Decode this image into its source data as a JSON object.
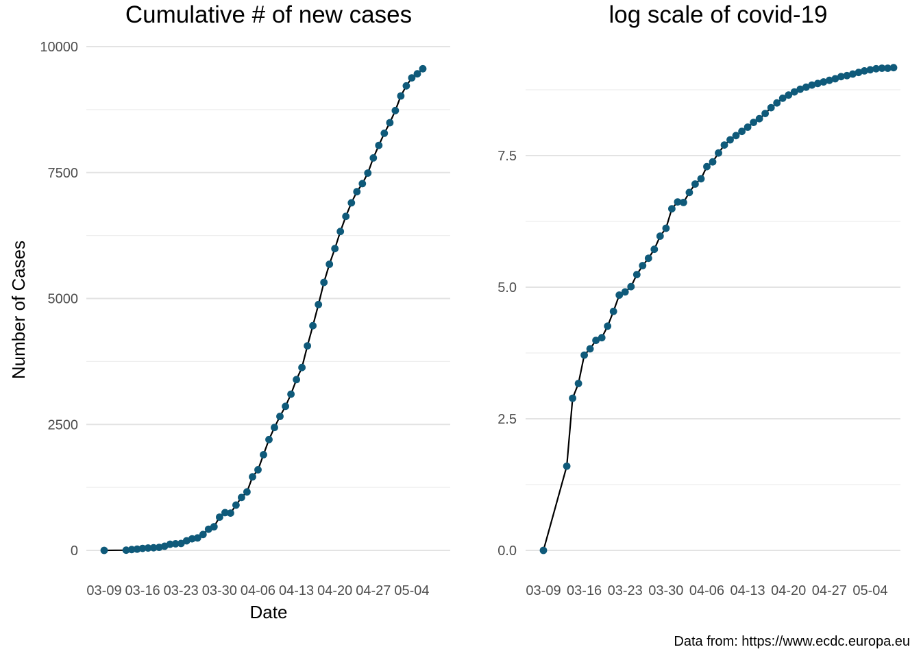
{
  "chart_data": [
    {
      "type": "line",
      "title": "Cumulative # of new cases",
      "xlabel": "Date",
      "ylabel": "Number of Cases",
      "grid": true,
      "legend": "none",
      "ylim": [
        -4,
        10000
      ],
      "x_ticks": [
        "03-09",
        "03-16",
        "03-23",
        "03-30",
        "04-06",
        "04-13",
        "04-20",
        "04-27",
        "05-04"
      ],
      "y_ticks": [
        "0",
        "2500",
        "5000",
        "7500",
        "10000"
      ],
      "series": [
        {
          "color": "#0f5a7a",
          "x": [
            "03-09",
            "03-13",
            "03-14",
            "03-15",
            "03-16",
            "03-17",
            "03-18",
            "03-19",
            "03-20",
            "03-21",
            "03-22",
            "03-23",
            "03-24",
            "03-25",
            "03-26",
            "03-27",
            "03-28",
            "03-29",
            "03-30",
            "03-31",
            "04-01",
            "04-02",
            "04-03",
            "04-04",
            "04-05",
            "04-06",
            "04-07",
            "04-08",
            "04-09",
            "04-10",
            "04-11",
            "04-12",
            "04-13",
            "04-14",
            "04-15",
            "04-16",
            "04-17",
            "04-18",
            "04-19",
            "04-20",
            "04-21",
            "04-22",
            "04-23",
            "04-24",
            "04-25",
            "04-26",
            "04-27",
            "04-28",
            "04-29",
            "04-30",
            "05-01",
            "05-02",
            "05-03",
            "05-04",
            "05-05",
            "05-06",
            "05-07",
            "05-08"
          ],
          "values": [
            0,
            4,
            17,
            25,
            40,
            47,
            52,
            60,
            83,
            122,
            130,
            138,
            190,
            230,
            247,
            315,
            420,
            470,
            660,
            750,
            740,
            900,
            1050,
            1160,
            1460,
            1600,
            1900,
            2200,
            2440,
            2660,
            2860,
            3100,
            3390,
            3630,
            4060,
            4460,
            4880,
            5320,
            5680,
            5990,
            6330,
            6630,
            6900,
            7120,
            7280,
            7490,
            7790,
            8040,
            8280,
            8490,
            8730,
            9020,
            9220,
            9380,
            9460,
            9560,
            null,
            null
          ]
        }
      ]
    },
    {
      "type": "line",
      "title": "log scale of covid-19",
      "xlabel": "",
      "ylabel": "",
      "grid": true,
      "legend": "none",
      "ylim": [
        0,
        9.5
      ],
      "x_ticks": [
        "03-09",
        "03-16",
        "03-23",
        "03-30",
        "04-06",
        "04-13",
        "04-20",
        "04-27",
        "05-04"
      ],
      "y_ticks": [
        "0.0",
        "2.5",
        "5.0",
        "7.5"
      ],
      "series": [
        {
          "color": "#0f5a7a",
          "x": [
            "03-09",
            "03-13",
            "03-14",
            "03-15",
            "03-16",
            "03-17",
            "03-18",
            "03-19",
            "03-20",
            "03-21",
            "03-22",
            "03-23",
            "03-24",
            "03-25",
            "03-26",
            "03-27",
            "03-28",
            "03-29",
            "03-30",
            "03-31",
            "04-01",
            "04-02",
            "04-03",
            "04-04",
            "04-05",
            "04-06",
            "04-07",
            "04-08",
            "04-09",
            "04-10",
            "04-11",
            "04-12",
            "04-13",
            "04-14",
            "04-15",
            "04-16",
            "04-17",
            "04-18",
            "04-19",
            "04-20",
            "04-21",
            "04-22",
            "04-23",
            "04-24",
            "04-25",
            "04-26",
            "04-27",
            "04-28",
            "04-29",
            "04-30",
            "05-01",
            "05-02",
            "05-03",
            "05-04",
            "05-05",
            "05-06",
            "05-07",
            "05-08"
          ],
          "values": [
            0,
            1.6,
            2.89,
            3.17,
            3.71,
            3.83,
            3.99,
            4.04,
            4.26,
            4.54,
            4.85,
            4.91,
            5.01,
            5.24,
            5.41,
            5.55,
            5.72,
            5.97,
            6.12,
            6.49,
            6.62,
            6.61,
            6.8,
            6.96,
            7.06,
            7.29,
            7.38,
            7.55,
            7.7,
            7.8,
            7.88,
            7.96,
            8.04,
            8.13,
            8.2,
            8.3,
            8.41,
            8.5,
            8.59,
            8.65,
            8.71,
            8.76,
            8.8,
            8.84,
            8.87,
            8.9,
            8.93,
            8.96,
            9.0,
            9.02,
            9.05,
            9.08,
            9.11,
            9.13,
            9.15,
            9.16,
            9.16,
            9.17
          ]
        }
      ]
    }
  ],
  "caption": "Data from: https://www.ecdc.europa.eu"
}
